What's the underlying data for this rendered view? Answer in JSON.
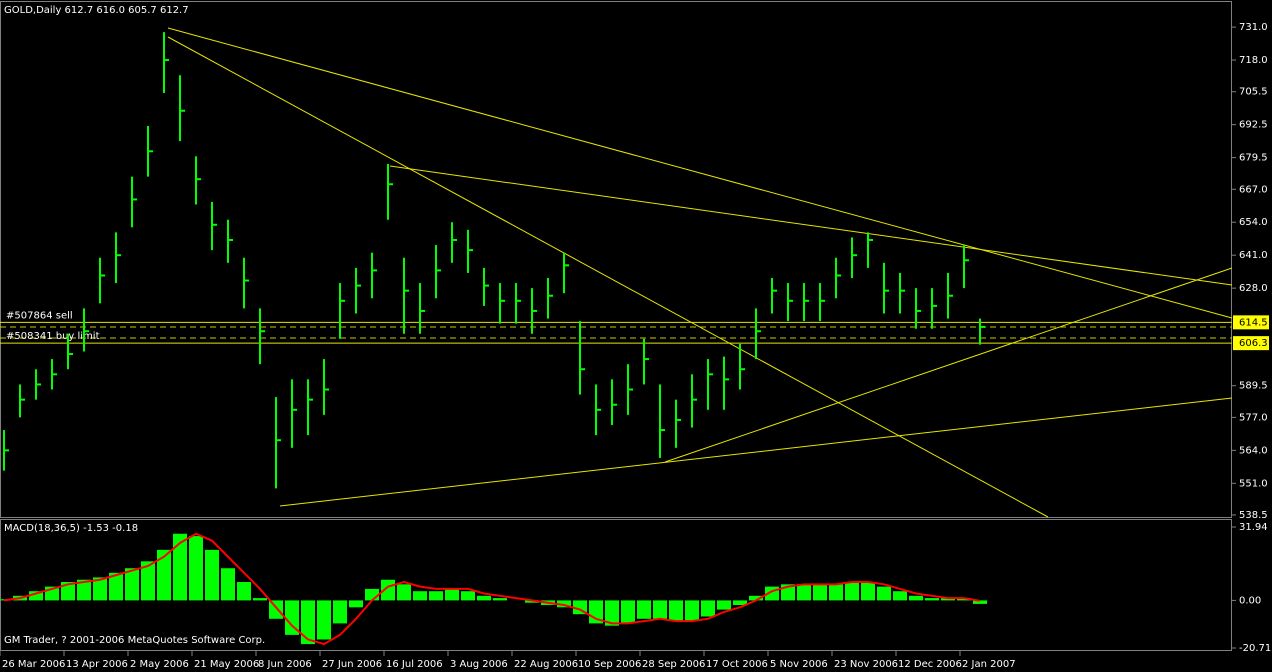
{
  "chart_data": [
    {
      "type": "ohlc",
      "title": "GOLD,Daily  612.7 616.0 605.7 612.7",
      "color": "#00ff00",
      "x": [
        1,
        5,
        9,
        13,
        17,
        21,
        25,
        29,
        33,
        37,
        41,
        45,
        49,
        53,
        57,
        61,
        65,
        69,
        73,
        77,
        81,
        85,
        89,
        93,
        97,
        101,
        105,
        109,
        113,
        117,
        121,
        125,
        129,
        133,
        137,
        141,
        145,
        149,
        153,
        157,
        161,
        165,
        169,
        173,
        177,
        181,
        185,
        189,
        193,
        197,
        201,
        205,
        209,
        213,
        217,
        221,
        225,
        229,
        233,
        237,
        241,
        245
      ],
      "high": [
        572,
        590,
        596,
        600,
        610,
        620,
        640,
        650,
        672,
        692,
        729,
        712,
        680,
        662,
        655,
        640,
        620,
        585,
        592,
        592,
        600,
        630,
        636,
        642,
        677,
        640,
        630,
        645,
        654,
        651,
        636,
        630,
        630,
        628,
        632,
        642,
        615,
        590,
        592,
        598,
        608,
        590,
        584,
        594,
        600,
        601,
        606,
        620,
        632,
        630,
        630,
        630,
        640,
        648,
        650,
        638,
        634,
        628,
        628,
        634,
        645,
        616.0
      ],
      "low": [
        556,
        577,
        584,
        588,
        596,
        603,
        622,
        630,
        652,
        672,
        705,
        686,
        661,
        643,
        638,
        620,
        598,
        549,
        565,
        570,
        578,
        608,
        618,
        624,
        655,
        610,
        610,
        624,
        638,
        634,
        621,
        614,
        614,
        610,
        616,
        626,
        586,
        570,
        574,
        578,
        590,
        561,
        565,
        573,
        580,
        580,
        588,
        600,
        618,
        615,
        615,
        615,
        624,
        632,
        636,
        618,
        618,
        612,
        612,
        616,
        628,
        605.7
      ],
      "close": [
        564,
        584,
        590,
        594,
        602,
        611,
        633,
        641,
        663,
        682,
        718,
        698,
        671,
        653,
        647,
        631,
        611,
        568,
        580,
        584,
        588,
        623,
        629,
        635,
        669,
        627,
        619,
        635,
        647,
        643,
        629,
        623,
        623,
        619,
        625,
        637,
        596,
        580,
        582,
        588,
        600,
        572,
        576,
        584,
        594,
        592,
        596,
        611,
        627,
        623,
        623,
        623,
        633,
        641,
        647,
        627,
        627,
        619,
        621,
        625,
        639,
        612.7
      ],
      "xlim": [
        0,
        308
      ],
      "xticks": [
        {
          "value": 0,
          "label": "26 Mar 2006"
        },
        {
          "value": 16,
          "label": "13 Apr 2006"
        },
        {
          "value": 32,
          "label": "2 May 2006"
        },
        {
          "value": 48,
          "label": "21 May 2006"
        },
        {
          "value": 64,
          "label": "8 Jun 2006"
        },
        {
          "value": 80,
          "label": "27 Jun 2006"
        },
        {
          "value": 96,
          "label": "16 Jul 2006"
        },
        {
          "value": 112,
          "label": "3 Aug 2006"
        },
        {
          "value": 128,
          "label": "22 Aug 2006"
        },
        {
          "value": 144,
          "label": "10 Sep 2006"
        },
        {
          "value": 160,
          "label": "28 Sep 2006"
        },
        {
          "value": 176,
          "label": "17 Oct 2006"
        },
        {
          "value": 192,
          "label": "5 Nov 2006"
        },
        {
          "value": 208,
          "label": "23 Nov 2006"
        },
        {
          "value": 224,
          "label": "12 Dec 2006"
        },
        {
          "value": 240,
          "label": "2 Jan 2007"
        }
      ],
      "ylim": [
        537.7,
        740.9
      ],
      "yticks": [
        {
          "value": 731,
          "label": "731.0"
        },
        {
          "value": 718,
          "label": "718.0"
        },
        705.5,
        692.5,
        679.5,
        {
          "value": 667,
          "label": "667.0"
        },
        {
          "value": 654,
          "label": "654.0"
        },
        {
          "value": 641,
          "label": "641.0"
        },
        {
          "value": 628,
          "label": "628.0"
        },
        589.5,
        {
          "value": 577,
          "label": "577.0"
        },
        {
          "value": 564,
          "label": "564.0"
        },
        {
          "value": 551,
          "label": "551.0"
        },
        538.5
      ],
      "order_lines": [
        {
          "label": "#507864 sell",
          "value": 614.5
        },
        {
          "label": "#508341 buy limit",
          "value": 606.3
        }
      ]
    },
    {
      "type": "macd",
      "title": "MACD(18,36,5) -1.53 -0.18",
      "color": "#00ff00",
      "signal_color": "#ff0000",
      "values": [
        0.5,
        2,
        4,
        6,
        8,
        9,
        10,
        12,
        14,
        17,
        22,
        29,
        28,
        22,
        14,
        8,
        1,
        -8,
        -15,
        -19,
        -17,
        -10,
        -3,
        5,
        9,
        7,
        4,
        4,
        5,
        4,
        2,
        1,
        0,
        -1,
        -2,
        -3,
        -6,
        -10,
        -11,
        -10,
        -8,
        -8,
        -9,
        -9,
        -7,
        -4,
        -2,
        2,
        6,
        7,
        7,
        7,
        7,
        8,
        8,
        6,
        4,
        2,
        1,
        1,
        1,
        -1.53
      ],
      "signal": [
        0,
        1,
        3,
        5,
        7,
        8,
        9,
        11,
        13,
        15,
        19,
        25,
        29,
        26,
        19,
        12,
        5,
        -3,
        -11,
        -17,
        -19,
        -15,
        -8,
        0,
        6,
        8,
        6,
        5,
        5,
        5,
        3,
        2,
        1,
        0,
        -1,
        -2,
        -4,
        -8,
        -10,
        -10,
        -9,
        -8,
        -9,
        -9,
        -8,
        -5,
        -3,
        0,
        4,
        6,
        7,
        7,
        7,
        8,
        8,
        7,
        5,
        3,
        2,
        1,
        1,
        -0.18
      ],
      "ylim": [
        -21.58,
        35.42
      ],
      "yticks": [
        31.94,
        {
          "value": 0,
          "label": "0.00"
        },
        -20.71
      ],
      "annotation": "GM Trader, ? 2001-2006 MetaQuotes Software Corp."
    }
  ]
}
